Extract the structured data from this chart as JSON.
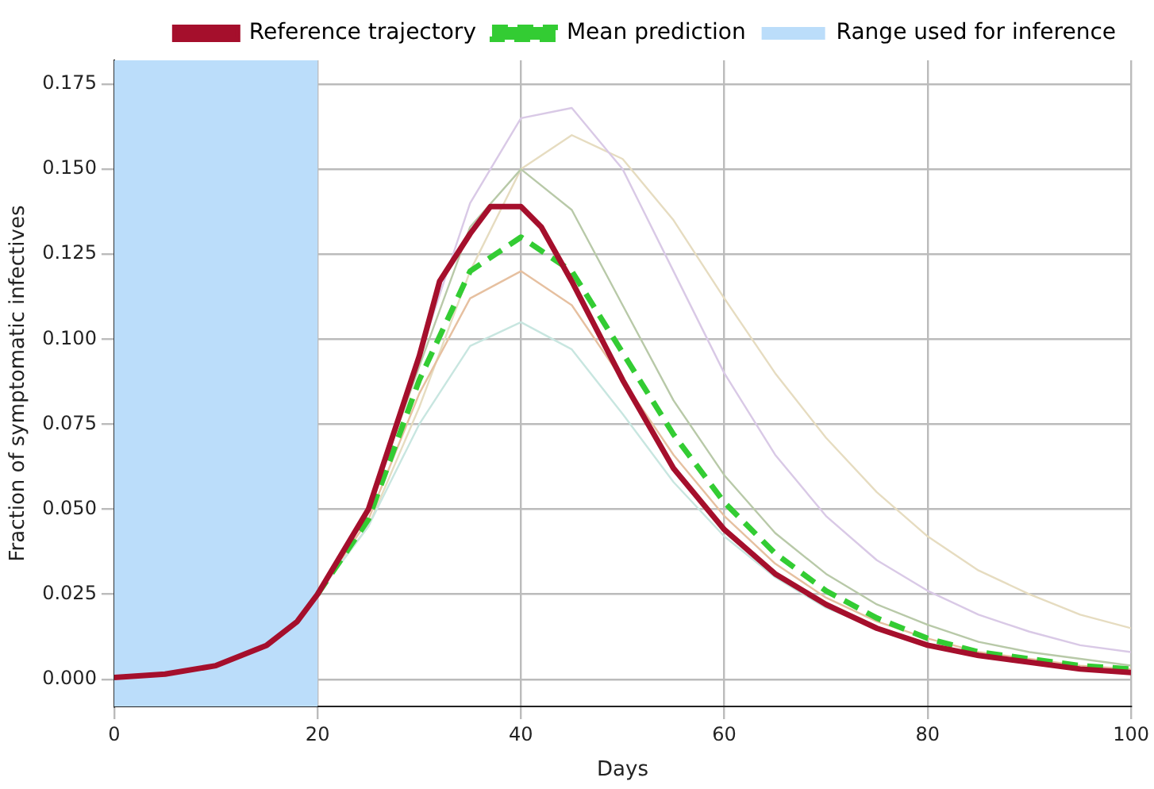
{
  "chart_data": {
    "type": "line",
    "xlabel": "Days",
    "ylabel": "Fraction of symptomatic infectives",
    "xlim": [
      0,
      100
    ],
    "xticks": [
      0,
      20,
      40,
      60,
      80,
      100
    ],
    "ylim": [
      -0.008,
      0.182
    ],
    "yticks": [
      {
        "value": 0,
        "label": "0.000"
      },
      {
        "value": 0.025,
        "label": "0.025"
      },
      {
        "value": 0.05,
        "label": "0.050"
      },
      {
        "value": 0.075,
        "label": "0.075"
      },
      {
        "value": 0.1,
        "label": "0.100"
      },
      {
        "value": 0.125,
        "label": "0.125"
      },
      {
        "value": 0.15,
        "label": "0.150"
      },
      {
        "value": 0.175,
        "label": "0.175"
      }
    ],
    "grid": true,
    "legend": "top right",
    "marker": "none",
    "bands": [
      {
        "axis": "x",
        "from": 0,
        "to": 20,
        "label": "Range used for inference",
        "color": "#bbddfa"
      }
    ],
    "series": [
      {
        "color": "#c8e6e0",
        "x": [
          20,
          25,
          30,
          35,
          40,
          45,
          50,
          55,
          60,
          65,
          70,
          75,
          80,
          85,
          90,
          95,
          100
        ],
        "values": [
          0.025,
          0.045,
          0.075,
          0.098,
          0.105,
          0.097,
          0.078,
          0.058,
          0.042,
          0.03,
          0.021,
          0.015,
          0.01,
          0.007,
          0.005,
          0.0035,
          0.0025
        ]
      },
      {
        "color": "#d9c9e6",
        "x": [
          20,
          25,
          30,
          35,
          40,
          45,
          50,
          55,
          60,
          65,
          70,
          75,
          80,
          85,
          90,
          95,
          100
        ],
        "values": [
          0.025,
          0.05,
          0.095,
          0.14,
          0.165,
          0.168,
          0.15,
          0.12,
          0.09,
          0.066,
          0.048,
          0.035,
          0.026,
          0.019,
          0.014,
          0.01,
          0.008
        ]
      },
      {
        "color": "#b8c9a8",
        "x": [
          20,
          25,
          30,
          35,
          40,
          45,
          50,
          55,
          60,
          65,
          70,
          75,
          80,
          85,
          90,
          95,
          100
        ],
        "values": [
          0.025,
          0.05,
          0.092,
          0.133,
          0.15,
          0.138,
          0.11,
          0.082,
          0.06,
          0.043,
          0.031,
          0.022,
          0.016,
          0.011,
          0.008,
          0.006,
          0.004
        ]
      },
      {
        "color": "#e6c0a0",
        "x": [
          20,
          25,
          30,
          35,
          40,
          45,
          50,
          55,
          60,
          65,
          70,
          75,
          80,
          85,
          90,
          95,
          100
        ],
        "values": [
          0.025,
          0.047,
          0.084,
          0.112,
          0.12,
          0.11,
          0.088,
          0.066,
          0.048,
          0.034,
          0.024,
          0.017,
          0.012,
          0.008,
          0.006,
          0.004,
          0.003
        ]
      },
      {
        "color": "#e6dcc0",
        "x": [
          20,
          25,
          30,
          35,
          40,
          45,
          50,
          55,
          60,
          65,
          70,
          75,
          80,
          85,
          90,
          95,
          100
        ],
        "values": [
          0.025,
          0.045,
          0.08,
          0.12,
          0.15,
          0.16,
          0.153,
          0.135,
          0.112,
          0.09,
          0.071,
          0.055,
          0.042,
          0.032,
          0.025,
          0.019,
          0.015
        ]
      },
      {
        "name": "Reference trajectory",
        "color": "#a50f2c",
        "line_style": "solid",
        "x": [
          0,
          5,
          10,
          15,
          18,
          20,
          25,
          30,
          32,
          35,
          37,
          40,
          42,
          45,
          50,
          55,
          60,
          65,
          70,
          75,
          80,
          85,
          90,
          95,
          100
        ],
        "values": [
          0.0005,
          0.0015,
          0.004,
          0.01,
          0.017,
          0.025,
          0.05,
          0.095,
          0.117,
          0.131,
          0.139,
          0.139,
          0.133,
          0.117,
          0.088,
          0.062,
          0.044,
          0.031,
          0.022,
          0.015,
          0.01,
          0.007,
          0.005,
          0.003,
          0.002
        ]
      },
      {
        "name": "Mean prediction",
        "color": "#33cc33",
        "line_style": "dashed",
        "x": [
          20,
          25,
          30,
          35,
          40,
          45,
          50,
          55,
          60,
          65,
          70,
          75,
          80,
          85,
          90,
          95,
          100
        ],
        "values": [
          0.025,
          0.047,
          0.088,
          0.12,
          0.13,
          0.12,
          0.096,
          0.072,
          0.052,
          0.037,
          0.026,
          0.018,
          0.012,
          0.008,
          0.006,
          0.004,
          0.003
        ]
      }
    ]
  }
}
